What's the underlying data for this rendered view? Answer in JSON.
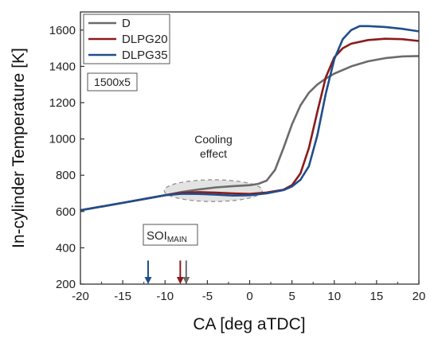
{
  "chart_data": {
    "type": "line",
    "xlabel": "CA [deg aTDC]",
    "ylabel": "In-cylinder Temperature [K]",
    "xlim": [
      -20,
      20
    ],
    "ylim": [
      200,
      1700
    ],
    "xticks": [
      -20,
      -15,
      -10,
      -5,
      0,
      5,
      10,
      15,
      20
    ],
    "yticks": [
      200,
      400,
      600,
      800,
      1000,
      1200,
      1400,
      1600
    ],
    "grid": false,
    "legend_position": "top-left",
    "series": [
      {
        "name": "D",
        "color": "#6b6b6b",
        "x": [
          -20,
          -15,
          -10,
          -8,
          -6,
          -4,
          -2,
          0,
          1,
          2,
          3,
          4,
          5,
          6,
          7,
          8,
          9,
          10,
          12,
          14,
          16,
          18,
          20
        ],
        "y": [
          607,
          648,
          690,
          708,
          722,
          733,
          740,
          745,
          752,
          770,
          830,
          950,
          1080,
          1185,
          1255,
          1300,
          1333,
          1360,
          1400,
          1428,
          1445,
          1455,
          1457
        ]
      },
      {
        "name": "DLPG20",
        "color": "#8b1a1a",
        "x": [
          -20,
          -15,
          -10,
          -8,
          -6,
          -4,
          -2,
          0,
          2,
          4,
          5,
          6,
          7,
          8,
          9,
          10,
          11,
          12,
          14,
          16,
          18,
          20
        ],
        "y": [
          607,
          648,
          690,
          703,
          707,
          704,
          700,
          697,
          705,
          720,
          745,
          810,
          950,
          1150,
          1340,
          1450,
          1500,
          1525,
          1545,
          1552,
          1550,
          1540
        ]
      },
      {
        "name": "DLPG35",
        "color": "#1f4e8c",
        "x": [
          -20,
          -15,
          -10,
          -8,
          -6,
          -4,
          -2,
          0,
          2,
          4,
          5,
          6,
          7,
          8,
          9,
          10,
          11,
          12,
          13,
          14,
          16,
          18,
          20
        ],
        "y": [
          607,
          648,
          690,
          698,
          697,
          693,
          688,
          690,
          700,
          718,
          738,
          775,
          850,
          1020,
          1250,
          1440,
          1550,
          1600,
          1622,
          1622,
          1617,
          1607,
          1593
        ]
      }
    ],
    "annotations": {
      "condition_label": "1500x5",
      "cooling_label": [
        "Cooling",
        "effect"
      ],
      "cooling_region": {
        "cx": -4.3,
        "cy": 715,
        "rx": 5.8,
        "ry": 60
      },
      "soi_label": "SOI",
      "soi_subscript": "MAIN",
      "soi_markers": [
        {
          "series": "DLPG35",
          "x": -12,
          "color": "#1f4e8c"
        },
        {
          "series": "DLPG20",
          "x": -8.2,
          "color": "#8b1a1a"
        },
        {
          "series": "D",
          "x": -7.5,
          "color": "#6b6b6b"
        }
      ],
      "soi_arrow_range": [
        330,
        200
      ]
    }
  }
}
